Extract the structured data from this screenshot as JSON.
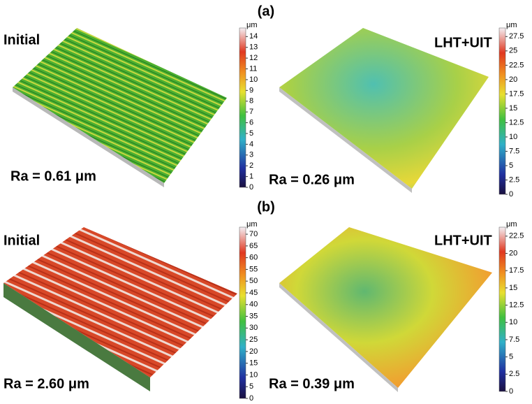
{
  "labels": [
    "(a)",
    "(b)"
  ],
  "panels": [
    {
      "name": "Initial",
      "ra": "Ra = 0.61 μm",
      "unit": "μm",
      "lim": [
        0,
        14.8
      ],
      "ticks": [
        0,
        1,
        2,
        3,
        4,
        5,
        6,
        7,
        8,
        9,
        10,
        11,
        12,
        13,
        14
      ]
    },
    {
      "name": "LHT+UIT",
      "ra": "Ra = 0.26 μm",
      "unit": "μm",
      "lim": [
        0,
        29
      ],
      "ticks": [
        0,
        2.5,
        5,
        7.5,
        10,
        12.5,
        15,
        17.5,
        20,
        22.5,
        25,
        27.5
      ]
    },
    {
      "name": "Initial",
      "ra": "Ra = 2.60 μm",
      "unit": "μm",
      "lim": [
        0,
        73
      ],
      "ticks": [
        0,
        5,
        10,
        15,
        20,
        25,
        30,
        35,
        40,
        45,
        50,
        55,
        60,
        65,
        70
      ]
    },
    {
      "name": "LHT+UIT",
      "ra": "Ra = 0.39 μm",
      "unit": "μm",
      "lim": [
        0,
        23.8
      ],
      "ticks": [
        0,
        2.5,
        5,
        7.5,
        10,
        12.5,
        15,
        17.5,
        20,
        22.5
      ]
    }
  ]
}
